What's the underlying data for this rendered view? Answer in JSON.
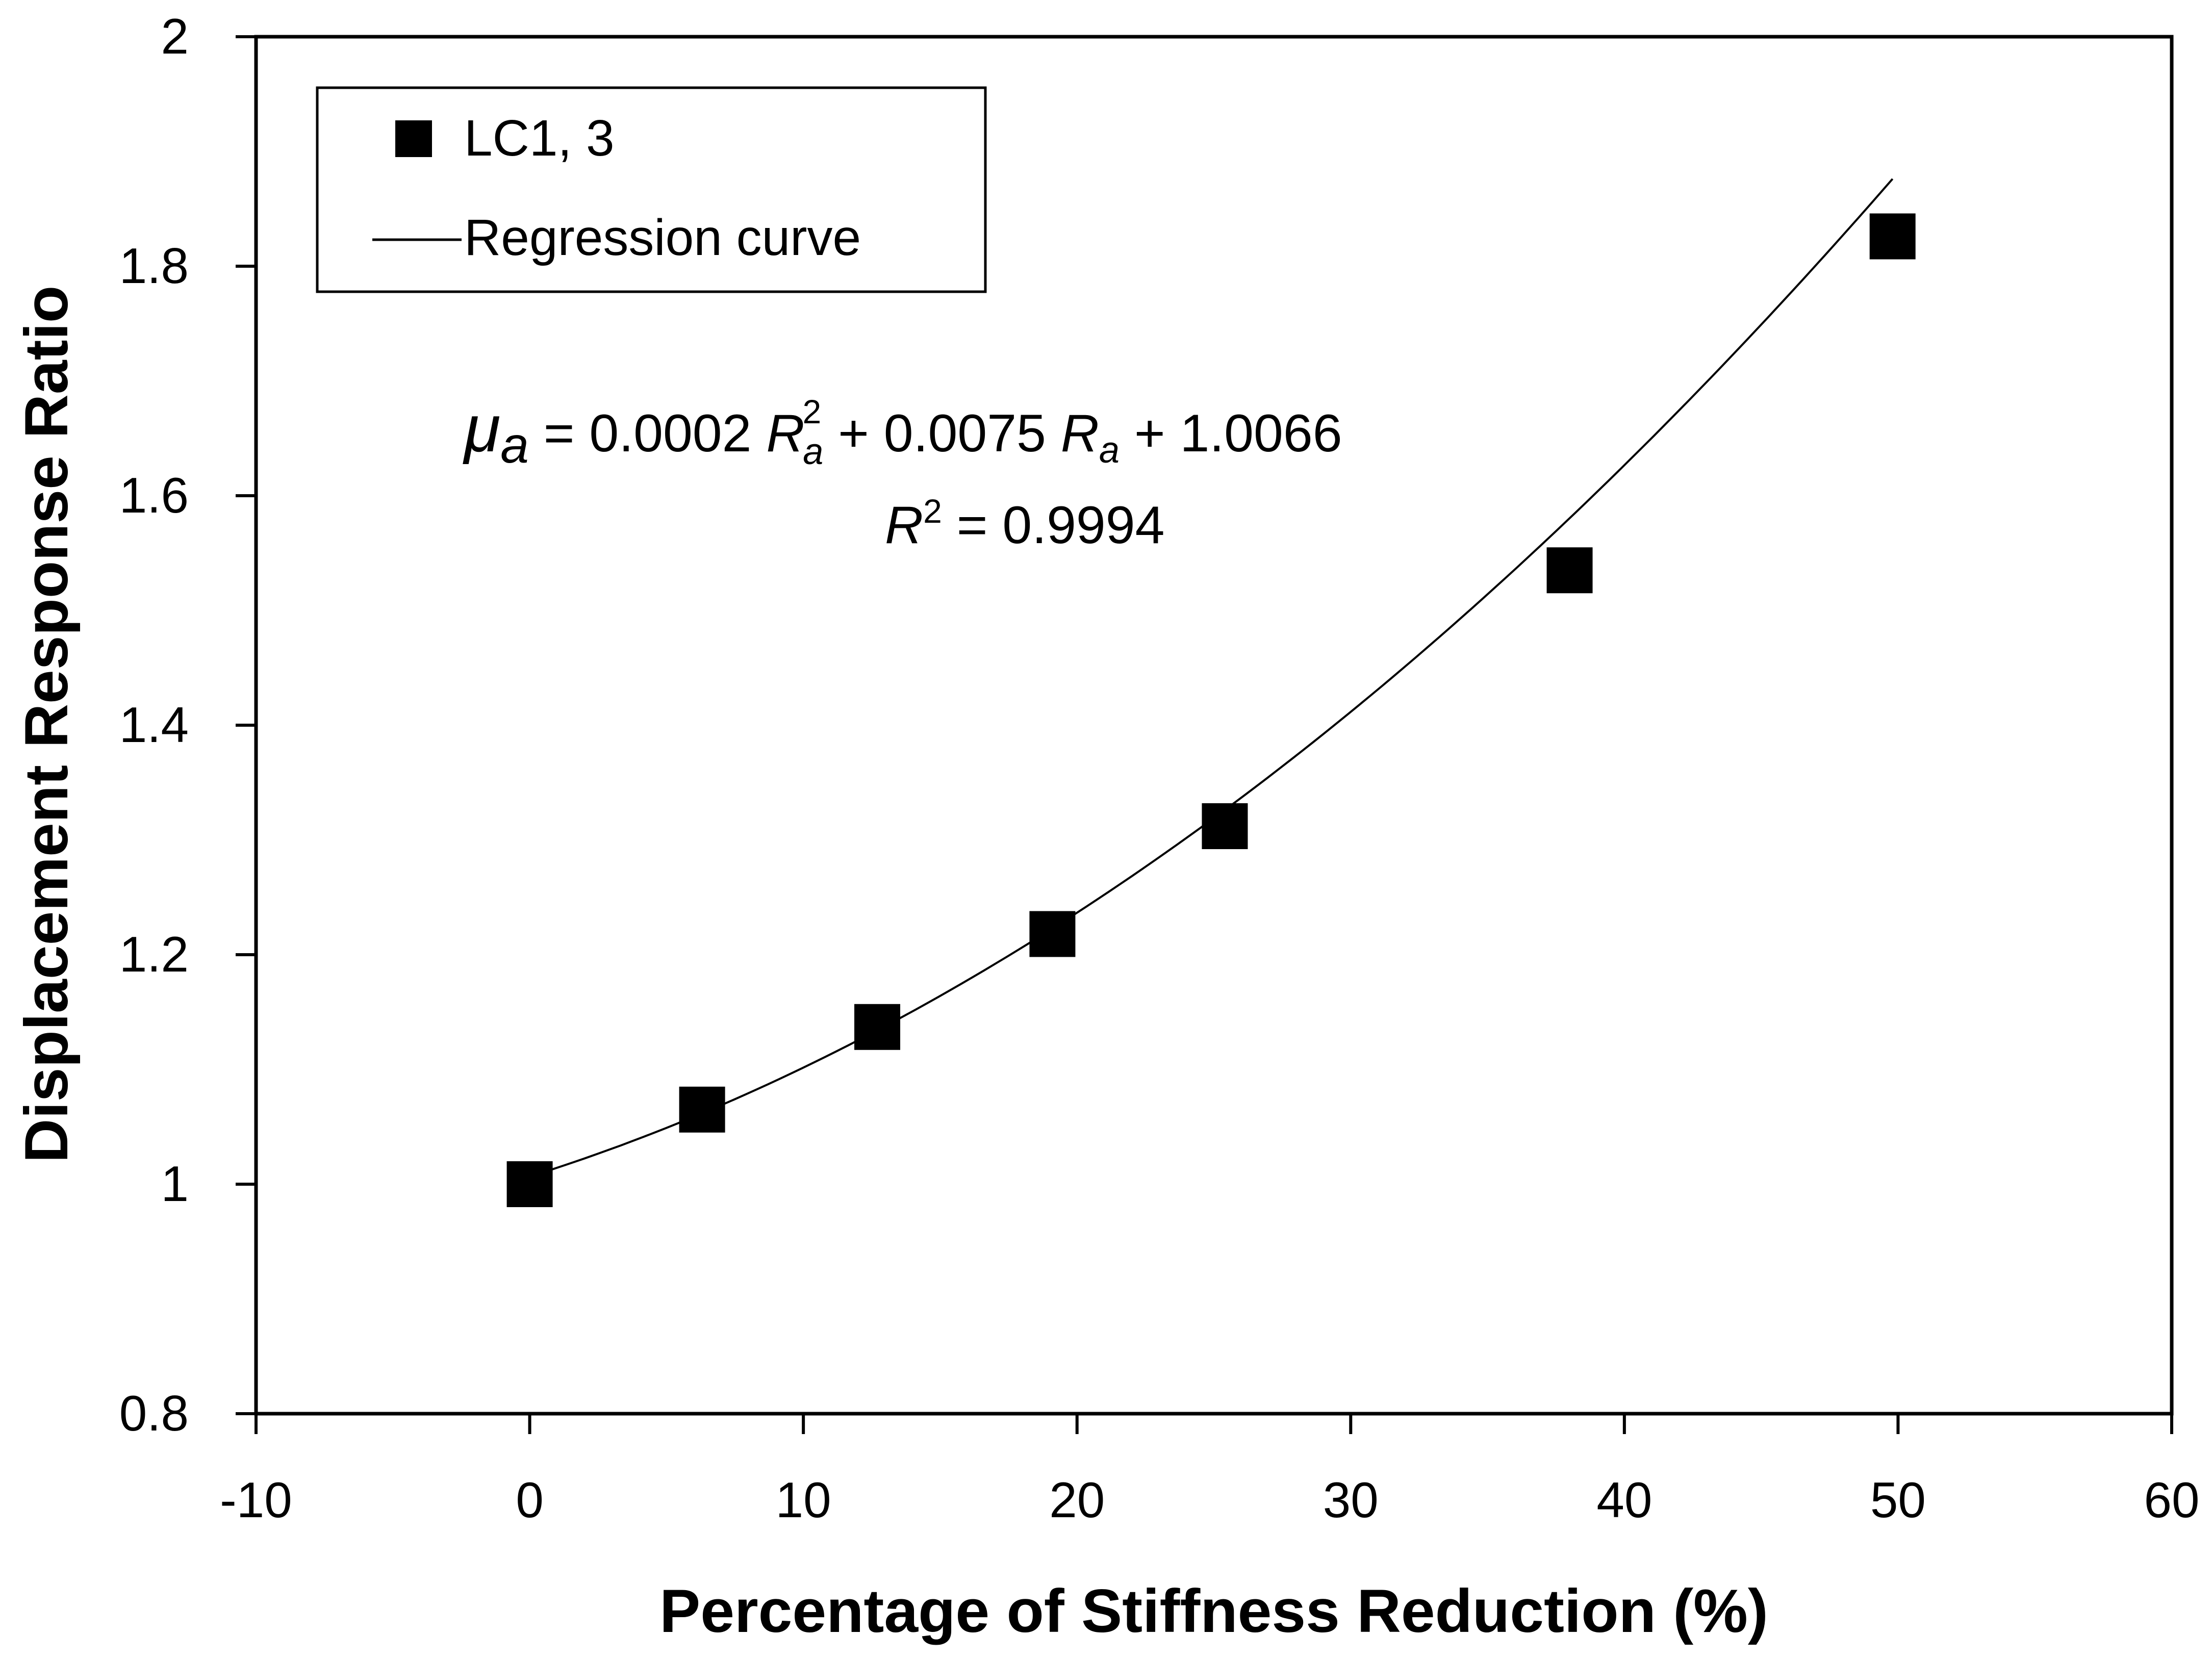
{
  "chart_data": {
    "type": "scatter",
    "xlabel": "Percentage of Stiffness Reduction (%)",
    "ylabel": "Displacement Response Ratio",
    "xlim": [
      -10,
      60
    ],
    "ylim": [
      0.8,
      2
    ],
    "x_ticks": [
      "-10",
      "0",
      "10",
      "20",
      "30",
      "40",
      "50",
      "60"
    ],
    "y_ticks": [
      "0.8",
      "1",
      "1.2",
      "1.4",
      "1.6",
      "1.8",
      "2"
    ],
    "grid": false,
    "legend_position": "top-left",
    "series": [
      {
        "name": "LC1, 3",
        "marker": "square",
        "color": "#000000",
        "x": [
          0,
          6.3,
          12.7,
          19.1,
          25.4,
          38.0,
          49.8
        ],
        "y": [
          1.0,
          1.065,
          1.137,
          1.218,
          1.312,
          1.535,
          1.826
        ]
      },
      {
        "name": "Regression curve",
        "style": "line",
        "color": "#000000",
        "coefficients": {
          "a2": 0.0002,
          "a1": 0.0075,
          "a0": 1.0066
        },
        "x_range": [
          0,
          49.8
        ]
      }
    ],
    "annotations": {
      "eq_lhs": "μ",
      "eq_lhs_sub": "a",
      "eq_part1": " = 0.0002 ",
      "eq_var1": "R",
      "eq_var1_sub": "a",
      "eq_var1_sup": "2",
      "eq_part2": " + 0.0075 ",
      "eq_var2": "R",
      "eq_var2_sub": "a",
      "eq_part3": "  + 1.0066",
      "r2_var": "R",
      "r2_sup": "2",
      "r2_rest": " = 0.9994"
    }
  }
}
